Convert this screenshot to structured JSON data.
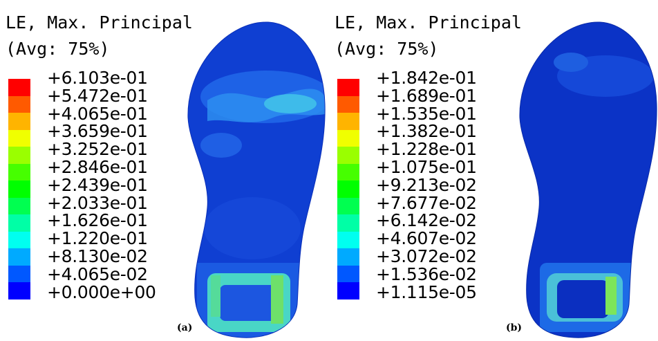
{
  "panels": [
    {
      "label": "(a)",
      "legend_title_line1": "LE, Max. Principal",
      "legend_title_line2": "(Avg: 75%)",
      "values": [
        "+6.103e-01",
        "+5.472e-01",
        "+4.065e-01",
        "+3.659e-01",
        "+3.252e-01",
        "+2.846e-01",
        "+2.439e-01",
        "+2.033e-01",
        "+1.626e-01",
        "+1.220e-01",
        "+8.130e-02",
        "+4.065e-02",
        "+0.000e+00"
      ]
    },
    {
      "label": "(b)",
      "legend_title_line1": "LE, Max. Principal",
      "legend_title_line2": "(Avg: 75%)",
      "values": [
        "+1.842e-01",
        "+1.689e-01",
        "+1.535e-01",
        "+1.382e-01",
        "+1.228e-01",
        "+1.075e-01",
        "+9.213e-02",
        "+7.677e-02",
        "+6.142e-02",
        "+4.607e-02",
        "+3.072e-02",
        "+1.536e-02",
        "+1.115e-05"
      ]
    }
  ],
  "colormap": [
    "#ff0000",
    "#ff5a00",
    "#ffb400",
    "#f0ff00",
    "#9aff00",
    "#46ff00",
    "#00ff00",
    "#00ff50",
    "#00ffa6",
    "#00fff0",
    "#00aaff",
    "#0058ff",
    "#0000ff"
  ]
}
